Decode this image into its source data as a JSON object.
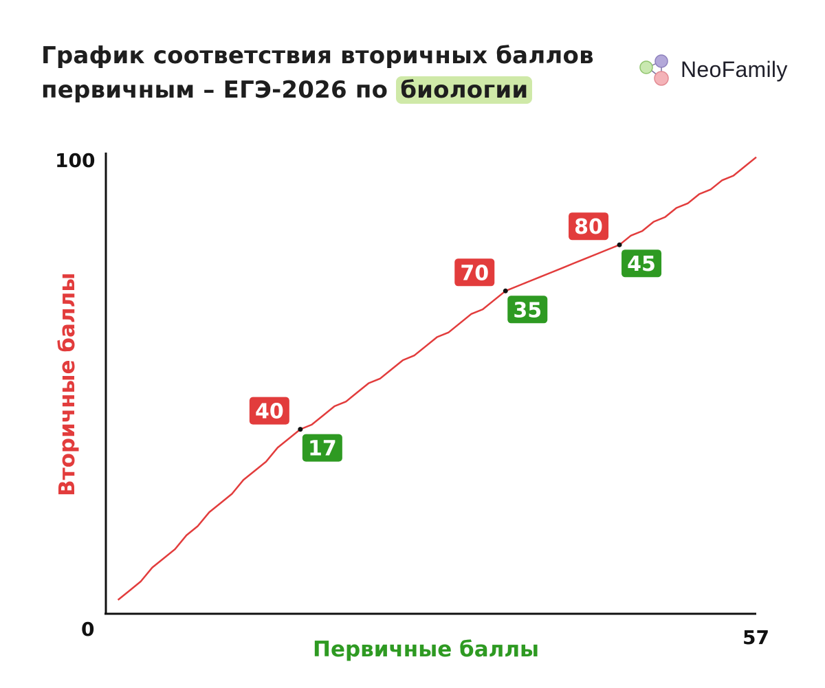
{
  "title": {
    "line1": "График соответствия вторичных баллов",
    "line2_prefix": "первичным – ЕГЭ-2026 по ",
    "line2_highlight": "биологии"
  },
  "logo": {
    "text": "NeoFamily",
    "icon": "molecule-logo-icon"
  },
  "colors": {
    "line": "#e23c3c",
    "secondary_badge": "#e23c3c",
    "primary_badge": "#2e9a22",
    "axis": "#111111",
    "highlight": "#cfe9a8"
  },
  "chart_data": {
    "type": "line",
    "title": "График соответствия вторичных баллов первичным – ЕГЭ-2026 по биологии",
    "xlabel": "Первичные баллы",
    "ylabel": "Вторичные баллы",
    "xlim": [
      0,
      57
    ],
    "ylim": [
      0,
      100
    ],
    "x_tick_labels": [
      "0",
      "57"
    ],
    "y_tick_labels": [
      "0",
      "100"
    ],
    "grid": false,
    "legend": "none",
    "x": [
      1,
      2,
      3,
      4,
      5,
      6,
      7,
      8,
      9,
      10,
      11,
      12,
      13,
      14,
      15,
      16,
      17,
      18,
      19,
      20,
      21,
      22,
      23,
      24,
      25,
      26,
      27,
      28,
      29,
      30,
      31,
      32,
      33,
      34,
      35,
      36,
      37,
      38,
      39,
      40,
      41,
      42,
      43,
      44,
      45,
      46,
      47,
      48,
      49,
      50,
      51,
      52,
      53,
      54,
      55,
      56,
      57
    ],
    "y": [
      3,
      5,
      7,
      10,
      12,
      14,
      17,
      19,
      22,
      24,
      26,
      29,
      31,
      33,
      36,
      38,
      40,
      41,
      43,
      45,
      46,
      48,
      50,
      51,
      53,
      55,
      56,
      58,
      60,
      61,
      63,
      65,
      66,
      68,
      70,
      71,
      72,
      73,
      74,
      75,
      76,
      77,
      78,
      79,
      80,
      82,
      83,
      85,
      86,
      88,
      89,
      91,
      92,
      94,
      95,
      97,
      99
    ],
    "highlighted_points": [
      {
        "x": 17,
        "y": 40,
        "x_label": "17",
        "y_label": "40"
      },
      {
        "x": 35,
        "y": 70,
        "x_label": "35",
        "y_label": "70"
      },
      {
        "x": 45,
        "y": 80,
        "x_label": "45",
        "y_label": "80"
      }
    ]
  }
}
